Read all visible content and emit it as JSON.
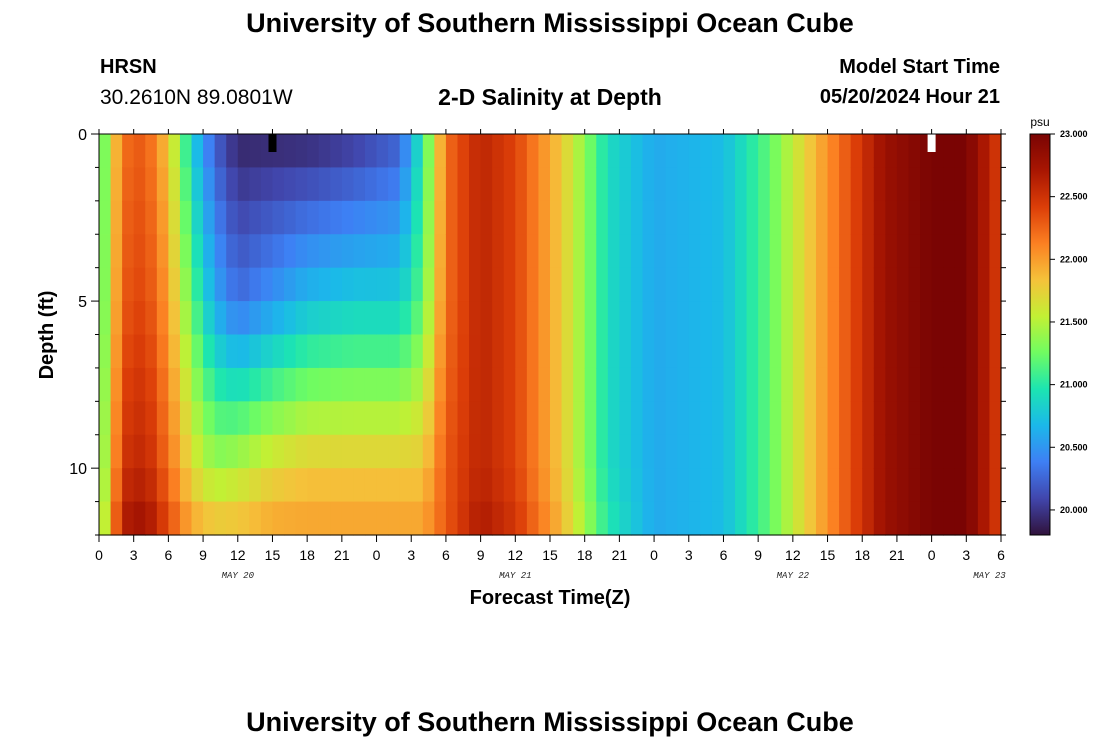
{
  "header": {
    "title": "University of Southern Mississippi Ocean Cube",
    "station": "HRSN",
    "coords": "30.2610N  89.0801W",
    "subtitle": "2-D Salinity at Depth",
    "start_label": "Model Start Time",
    "start_value": "05/20/2024 Hour 21"
  },
  "footer": {
    "title": "University of Southern Mississippi Ocean Cube"
  },
  "chart_data": {
    "type": "heatmap",
    "title": "2-D Salinity at Depth",
    "xlabel": "Forecast Time(Z)",
    "ylabel": "Depth (ft)",
    "x_ticks": [
      "0",
      "3",
      "6",
      "9",
      "12",
      "15",
      "18",
      "21",
      "0",
      "3",
      "6",
      "9",
      "12",
      "15",
      "18",
      "21",
      "0",
      "3",
      "6",
      "9",
      "12",
      "15",
      "18",
      "21",
      "0",
      "3",
      "6"
    ],
    "day_labels": [
      {
        "label": "MAY 20",
        "hour": 12
      },
      {
        "label": "MAY 21",
        "hour": 36
      },
      {
        "label": "MAY 22",
        "hour": 60
      },
      {
        "label": "MAY 23",
        "hour": 77
      }
    ],
    "xlim_hours": [
      0,
      78
    ],
    "y_ticks": [
      0,
      5,
      10
    ],
    "ylim_ft": [
      0,
      12
    ],
    "depth_levels_ft": [
      0,
      1,
      2,
      3,
      4,
      5,
      6,
      7,
      8,
      9,
      10,
      11
    ],
    "colorbar": {
      "unit": "psu",
      "range": [
        19.8,
        23.0
      ],
      "ticks": [
        "23.000",
        "22.500",
        "22.000",
        "21.500",
        "21.000",
        "20.500",
        "20.000"
      ],
      "colors": [
        "#30123b",
        "#4146ac",
        "#3e7ff4",
        "#1bb8ea",
        "#1ce5b1",
        "#70fc61",
        "#c2f034",
        "#f5c23a",
        "#fb8022",
        "#dc3e08",
        "#a81602",
        "#7a0403"
      ]
    },
    "salinity_profile": {
      "note": "salinity (psu) vs forecast hour; rows: surface, 5 ft, 10 ft, 12 ft",
      "hours": [
        0,
        2,
        4,
        6,
        8,
        10,
        12,
        15,
        18,
        22,
        26,
        28,
        30,
        33,
        36,
        40,
        44,
        48,
        54,
        58,
        62,
        66,
        68,
        72,
        75,
        78
      ],
      "surface_0ft": [
        21.0,
        22.2,
        22.3,
        21.8,
        20.8,
        20.2,
        19.9,
        19.9,
        19.9,
        20.0,
        20.2,
        21.0,
        22.2,
        22.6,
        22.4,
        21.8,
        20.9,
        20.6,
        20.7,
        21.2,
        21.9,
        22.5,
        22.8,
        23.0,
        23.0,
        22.4
      ],
      "depth_5ft": [
        21.0,
        22.3,
        22.4,
        22.0,
        21.2,
        20.6,
        20.3,
        20.5,
        20.7,
        20.8,
        20.8,
        21.2,
        22.2,
        22.6,
        22.4,
        21.8,
        20.9,
        20.6,
        20.7,
        21.2,
        21.9,
        22.5,
        22.8,
        23.0,
        23.0,
        22.4
      ],
      "depth_10ft": [
        21.1,
        22.5,
        22.6,
        22.2,
        21.7,
        21.4,
        21.5,
        21.7,
        21.8,
        21.8,
        21.8,
        21.8,
        22.3,
        22.6,
        22.4,
        21.8,
        20.9,
        20.6,
        20.7,
        21.2,
        21.9,
        22.5,
        22.8,
        23.0,
        23.0,
        22.4
      ],
      "depth_12ft": [
        21.2,
        22.7,
        22.8,
        22.4,
        22.0,
        21.9,
        21.9,
        22.0,
        22.0,
        22.0,
        22.0,
        22.0,
        22.3,
        22.7,
        22.5,
        21.9,
        21.0,
        20.6,
        20.7,
        21.2,
        21.9,
        22.5,
        22.8,
        23.0,
        23.0,
        22.4
      ]
    },
    "markers": [
      {
        "hour": 15,
        "color": "#000000"
      },
      {
        "hour": 72,
        "color": "#ffffff"
      }
    ]
  }
}
